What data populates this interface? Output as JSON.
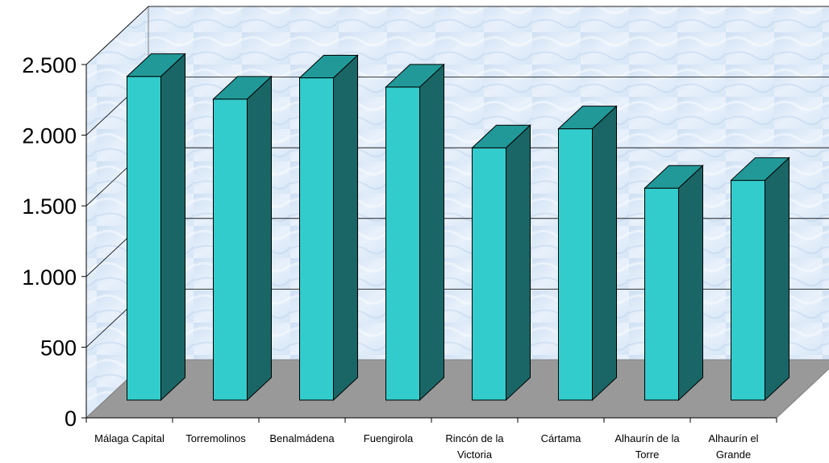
{
  "chart_data": {
    "type": "bar",
    "categories": [
      [
        "Málaga Capital"
      ],
      [
        "Torremolinos"
      ],
      [
        "Benalmádena"
      ],
      [
        "Fuengirola"
      ],
      [
        "Rincón de la",
        "Victoria"
      ],
      [
        "Cártama"
      ],
      [
        "Alhaurín de la",
        "Torre"
      ],
      [
        "Alhaurín el",
        "Grande"
      ]
    ],
    "values": [
      2290,
      2130,
      2280,
      2215,
      1785,
      1920,
      1500,
      1555
    ],
    "ylim": [
      0,
      2500
    ],
    "yticks": [
      0,
      500,
      1000,
      1500,
      2000,
      2500
    ],
    "ytick_labels": [
      "0",
      "500",
      "1.000",
      "1.500",
      "2.000",
      "2.500"
    ],
    "grid": true,
    "style": "3d-column",
    "colors": {
      "bar_front": "#33CCCC",
      "bar_top": "#229999",
      "bar_side": "#1A6666",
      "floor": "#999999",
      "wall": "#DDE9F7",
      "gridline": "#000000"
    }
  }
}
